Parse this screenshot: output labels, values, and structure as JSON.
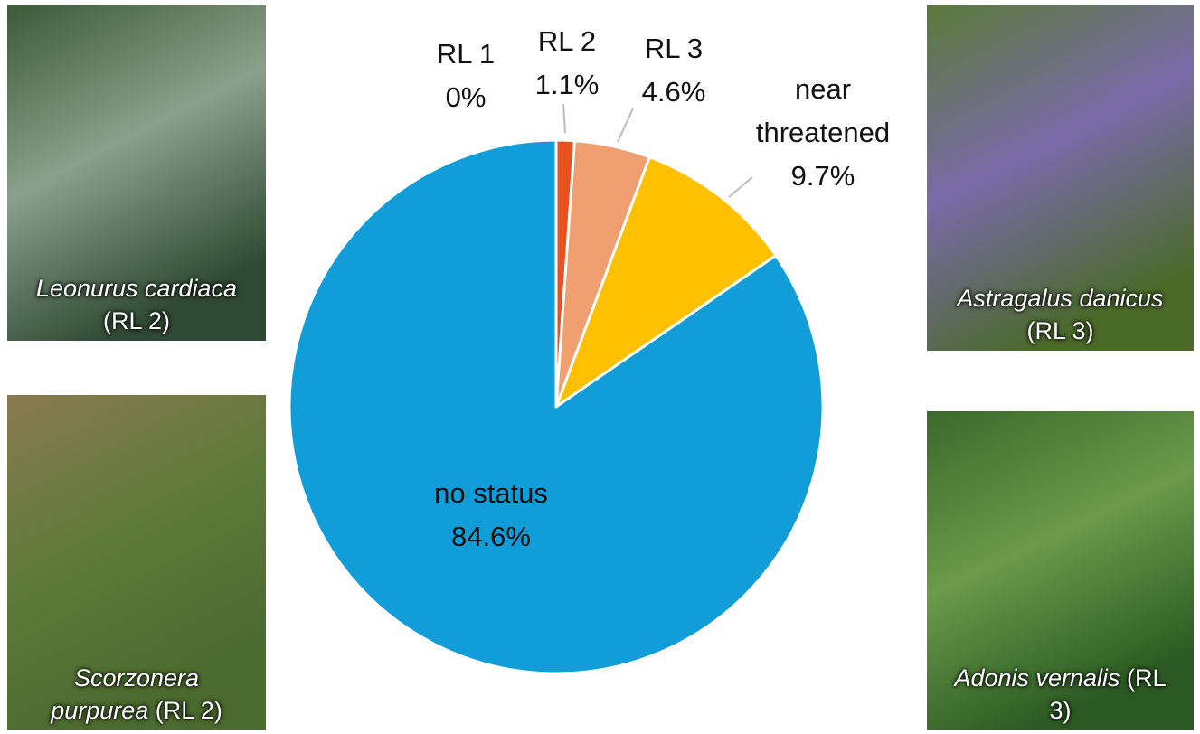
{
  "chart_data": {
    "type": "pie",
    "categories": [
      "RL 1",
      "RL 2",
      "RL 3",
      "near threatened",
      "no status"
    ],
    "values": [
      0,
      1.1,
      4.6,
      9.7,
      84.6
    ],
    "value_labels": [
      "0%",
      "1.1%",
      "4.6%",
      "9.7%",
      "84.6%"
    ],
    "colors": [
      "#c00000",
      "#e8501e",
      "#f0a070",
      "#ffc000",
      "#109dd8"
    ]
  },
  "photos": [
    {
      "species": "Leonurus cardiaca",
      "status": "(RL 2)"
    },
    {
      "species": "Scorzonera purpurea",
      "status": "(RL 2)"
    },
    {
      "species": "Astragalus danicus",
      "status": "(RL 3)"
    },
    {
      "species": "Adonis vernalis",
      "status": "(RL 3)"
    }
  ]
}
